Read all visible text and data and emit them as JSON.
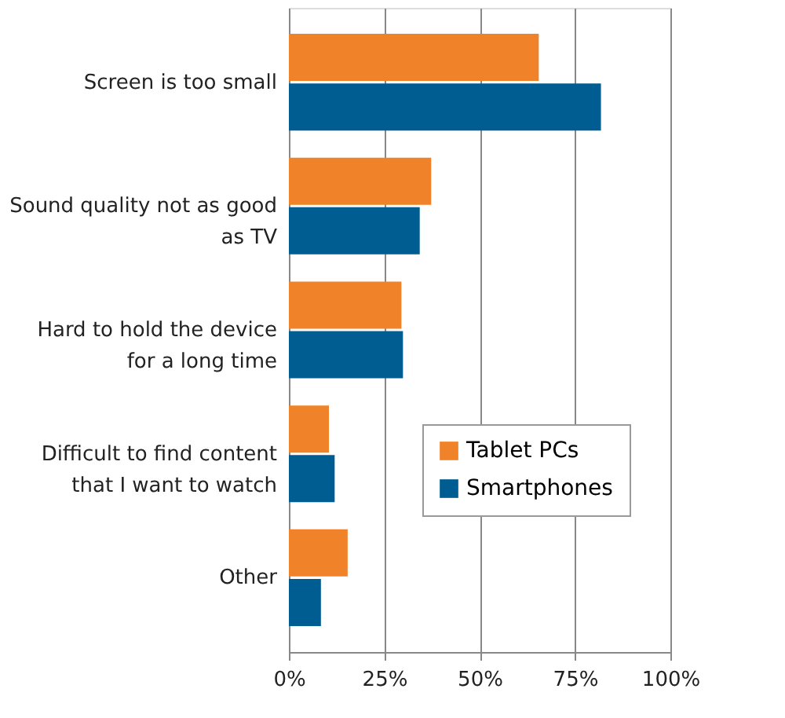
{
  "chart_data": {
    "type": "bar",
    "orientation": "horizontal",
    "categories": [
      "Screen is too small",
      "Sound quality not as good as TV",
      "Hard to hold the device for a long time",
      "Difficult to find content that I want to watch",
      "Other"
    ],
    "series": [
      {
        "name": "Tablet PCs",
        "color": "#f08229",
        "values": [
          65.5,
          37.3,
          29.5,
          10.5,
          15.4
        ]
      },
      {
        "name": "Smartphones",
        "color": "#005d91",
        "values": [
          81.8,
          34.3,
          29.9,
          12,
          8.4
        ]
      }
    ],
    "xlim": [
      0,
      100
    ],
    "xticks": [
      {
        "value": 0,
        "label": "0%"
      },
      {
        "value": 25,
        "label": "25%"
      },
      {
        "value": 50,
        "label": "50%"
      },
      {
        "value": 75,
        "label": "75%"
      },
      {
        "value": 100,
        "label": "100%"
      }
    ],
    "grid": "x",
    "legend": "right"
  }
}
